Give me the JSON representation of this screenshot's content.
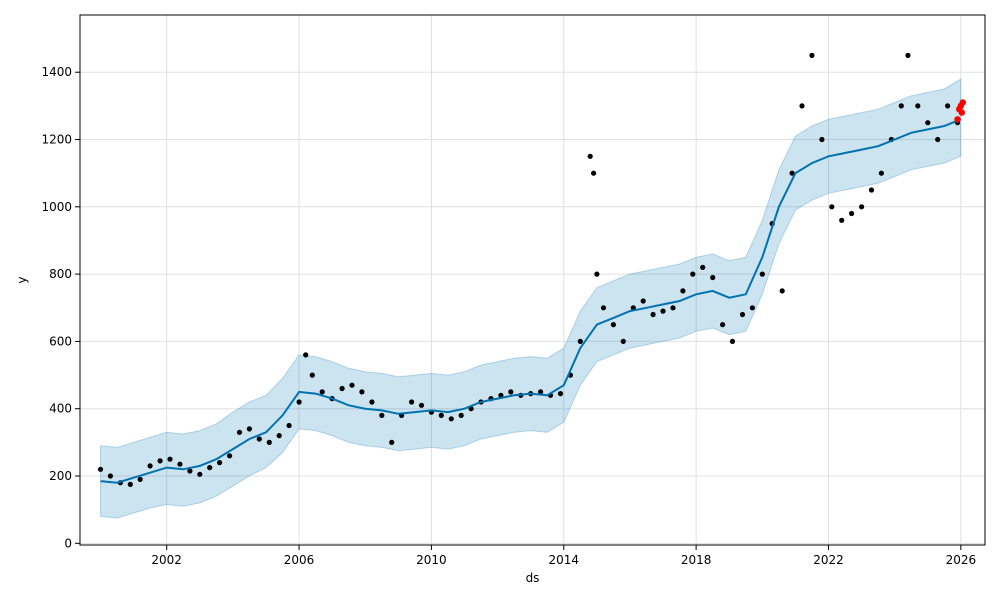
{
  "chart_data": {
    "type": "scatter",
    "title": "",
    "xlabel": "ds",
    "ylabel": "y",
    "xlim": [
      1999.38,
      2026.73
    ],
    "ylim": [
      -5,
      1570
    ],
    "x_ticks": [
      2002,
      2006,
      2010,
      2014,
      2018,
      2022,
      2026
    ],
    "x_tick_labels": [
      "2002",
      "2006",
      "2010",
      "2014",
      "2018",
      "2022",
      "2026"
    ],
    "y_ticks": [
      0,
      200,
      400,
      600,
      800,
      1000,
      1200,
      1400
    ],
    "y_tick_labels": [
      "0",
      "200",
      "400",
      "600",
      "800",
      "1000",
      "1200",
      "1400"
    ],
    "grid": true,
    "colors": {
      "actual": "#000000",
      "forecast": "#0072B2",
      "interval": "#0072B2",
      "future_points": "#ff0000"
    },
    "series": [
      {
        "kind": "forecast_line",
        "x": [
          2000.0,
          2000.5,
          2001.0,
          2001.5,
          2002.0,
          2002.5,
          2003.0,
          2003.5,
          2004.0,
          2004.5,
          2005.0,
          2005.5,
          2006.0,
          2006.5,
          2007.0,
          2007.5,
          2008.0,
          2008.5,
          2009.0,
          2009.5,
          2010.0,
          2010.5,
          2011.0,
          2011.5,
          2012.0,
          2012.5,
          2013.0,
          2013.5,
          2014.0,
          2014.5,
          2015.0,
          2015.5,
          2016.0,
          2016.5,
          2017.0,
          2017.5,
          2018.0,
          2018.5,
          2019.0,
          2019.5,
          2020.0,
          2020.5,
          2021.0,
          2021.5,
          2022.0,
          2022.5,
          2023.0,
          2023.5,
          2024.0,
          2024.5,
          2025.0,
          2025.5,
          2026.0
        ],
        "y": [
          185,
          180,
          195,
          210,
          225,
          220,
          230,
          250,
          280,
          310,
          330,
          380,
          450,
          445,
          430,
          410,
          400,
          395,
          385,
          390,
          395,
          390,
          400,
          420,
          430,
          440,
          445,
          440,
          470,
          580,
          650,
          670,
          690,
          700,
          710,
          720,
          740,
          750,
          730,
          740,
          850,
          1000,
          1100,
          1130,
          1150,
          1160,
          1170,
          1180,
          1200,
          1220,
          1230,
          1240,
          1260
        ]
      },
      {
        "kind": "uncertainty_interval",
        "x": [
          2000.0,
          2000.5,
          2001.0,
          2001.5,
          2002.0,
          2002.5,
          2003.0,
          2003.5,
          2004.0,
          2004.5,
          2005.0,
          2005.5,
          2006.0,
          2006.5,
          2007.0,
          2007.5,
          2008.0,
          2008.5,
          2009.0,
          2009.5,
          2010.0,
          2010.5,
          2011.0,
          2011.5,
          2012.0,
          2012.5,
          2013.0,
          2013.5,
          2014.0,
          2014.5,
          2015.0,
          2015.5,
          2016.0,
          2016.5,
          2017.0,
          2017.5,
          2018.0,
          2018.5,
          2019.0,
          2019.5,
          2020.0,
          2020.5,
          2021.0,
          2021.5,
          2022.0,
          2022.5,
          2023.0,
          2023.5,
          2024.0,
          2024.5,
          2025.0,
          2025.5,
          2026.0
        ],
        "lower": [
          80,
          75,
          90,
          105,
          115,
          110,
          120,
          140,
          170,
          200,
          225,
          270,
          340,
          335,
          320,
          300,
          290,
          285,
          275,
          280,
          285,
          280,
          290,
          310,
          320,
          330,
          335,
          330,
          360,
          470,
          540,
          560,
          580,
          590,
          600,
          610,
          630,
          640,
          620,
          630,
          740,
          890,
          990,
          1020,
          1040,
          1050,
          1060,
          1070,
          1090,
          1110,
          1120,
          1130,
          1150
        ],
        "upper": [
          290,
          285,
          300,
          315,
          330,
          325,
          335,
          355,
          390,
          420,
          440,
          490,
          560,
          555,
          540,
          520,
          510,
          505,
          495,
          500,
          505,
          500,
          510,
          530,
          540,
          550,
          555,
          550,
          580,
          690,
          760,
          780,
          800,
          810,
          820,
          830,
          850,
          860,
          840,
          850,
          960,
          1110,
          1210,
          1240,
          1260,
          1270,
          1280,
          1290,
          1310,
          1330,
          1340,
          1350,
          1380
        ]
      },
      {
        "kind": "actual_points",
        "x": [
          2000.0,
          2000.3,
          2000.6,
          2000.9,
          2001.2,
          2001.5,
          2001.8,
          2002.1,
          2002.4,
          2002.7,
          2003.0,
          2003.3,
          2003.6,
          2003.9,
          2004.2,
          2004.5,
          2004.8,
          2005.1,
          2005.4,
          2005.7,
          2006.0,
          2006.2,
          2006.4,
          2006.7,
          2007.0,
          2007.3,
          2007.6,
          2007.9,
          2008.2,
          2008.5,
          2008.8,
          2009.1,
          2009.4,
          2009.7,
          2010.0,
          2010.3,
          2010.6,
          2010.9,
          2011.2,
          2011.5,
          2011.8,
          2012.1,
          2012.4,
          2012.7,
          2013.0,
          2013.3,
          2013.6,
          2013.9,
          2014.2,
          2014.5,
          2014.8,
          2014.9,
          2015.0,
          2015.2,
          2015.5,
          2015.8,
          2016.1,
          2016.4,
          2016.7,
          2017.0,
          2017.3,
          2017.6,
          2017.9,
          2018.2,
          2018.5,
          2018.8,
          2019.1,
          2019.4,
          2019.7,
          2020.0,
          2020.3,
          2020.6,
          2020.9,
          2021.2,
          2021.5,
          2021.8,
          2022.1,
          2022.4,
          2022.7,
          2023.0,
          2023.3,
          2023.6,
          2023.9,
          2024.2,
          2024.4,
          2024.7,
          2025.0,
          2025.3,
          2025.6,
          2025.9
        ],
        "y": [
          220,
          200,
          180,
          175,
          190,
          230,
          245,
          250,
          235,
          215,
          205,
          225,
          240,
          260,
          330,
          340,
          310,
          300,
          320,
          350,
          420,
          560,
          500,
          450,
          430,
          460,
          470,
          450,
          420,
          380,
          300,
          380,
          420,
          410,
          390,
          380,
          370,
          380,
          400,
          420,
          430,
          440,
          450,
          440,
          445,
          450,
          440,
          445,
          500,
          600,
          1150,
          1100,
          800,
          700,
          650,
          600,
          700,
          720,
          680,
          690,
          700,
          750,
          800,
          820,
          790,
          650,
          600,
          680,
          700,
          800,
          950,
          750,
          1100,
          1300,
          1450,
          1200,
          1000,
          960,
          980,
          1000,
          1050,
          1100,
          1200,
          1300,
          1450,
          1300,
          1250,
          1200,
          1300,
          1250
        ]
      },
      {
        "kind": "future_points",
        "x": [
          2025.9,
          2025.95,
          2026.0,
          2026.03,
          2026.06
        ],
        "y": [
          1260,
          1290,
          1300,
          1280,
          1310
        ]
      }
    ]
  }
}
